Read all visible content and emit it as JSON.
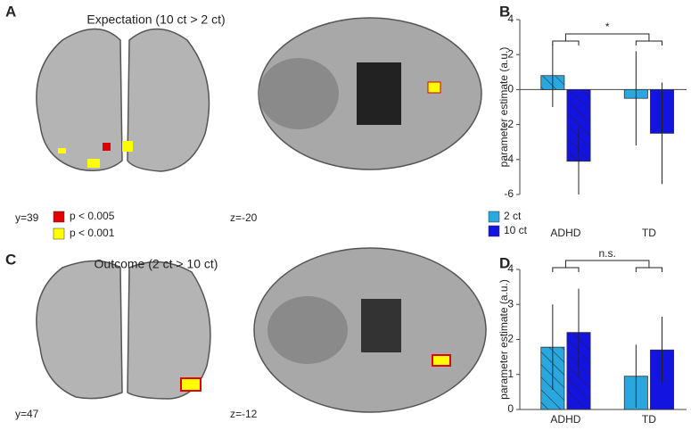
{
  "panels": {
    "a_letter": "A",
    "a_title": "Expectation (10 ct > 2 ct)",
    "a_coord1": "y=39",
    "a_coord2": "z=-20",
    "p_legend": [
      {
        "label": "p < 0.005",
        "color": "#e00000"
      },
      {
        "label": "p < 0.001",
        "color": "#ffff00"
      }
    ],
    "c_letter": "C",
    "c_title": "Outcome (2 ct > 10 ct)",
    "c_coord1": "y=47",
    "c_coord2": "z=-12"
  },
  "chart_data": [
    {
      "type": "bar",
      "letter": "B",
      "ylabel": "parameter estimate (a.u.)",
      "categories": [
        "ADHD",
        "TD"
      ],
      "hatch": [
        true,
        false
      ],
      "series": [
        {
          "name": "2 ct",
          "color": "#29a8e0",
          "values": [
            0.8,
            -0.5
          ],
          "errors": [
            1.8,
            2.7
          ]
        },
        {
          "name": "10 ct",
          "color": "#1414e0",
          "values": [
            -4.1,
            -2.5
          ],
          "errors": [
            1.9,
            2.9
          ]
        }
      ],
      "ylim": [
        -6,
        4
      ],
      "yticks": [
        -6,
        -4,
        -2,
        0,
        2,
        4
      ],
      "legend": "lower left",
      "annotation": "*"
    },
    {
      "type": "bar",
      "letter": "D",
      "ylabel": "parameter estimate (a.u.)",
      "categories": [
        "ADHD",
        "TD"
      ],
      "hatch": [
        true,
        false
      ],
      "series": [
        {
          "name": "2 ct",
          "color": "#29a8e0",
          "values": [
            1.78,
            0.95
          ],
          "errors": [
            1.22,
            0.9
          ]
        },
        {
          "name": "10 ct",
          "color": "#1414e0",
          "values": [
            2.2,
            1.7
          ],
          "errors": [
            1.25,
            0.95
          ]
        }
      ],
      "ylim": [
        0,
        4
      ],
      "yticks": [
        0,
        1,
        2,
        3,
        4
      ],
      "annotation": "n.s."
    }
  ]
}
